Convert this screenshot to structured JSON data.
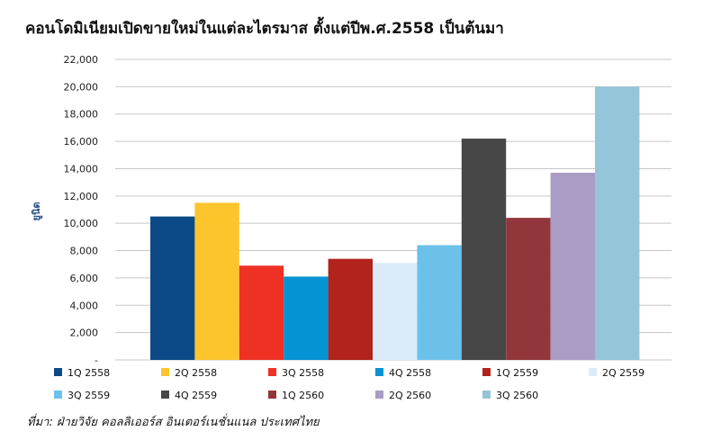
{
  "chart_data": {
    "type": "bar",
    "title": "คอนโดมิเนียมเปิดขายใหม่ในแต่ละไตรมาส ตั้งแต่ปีพ.ศ.2558 เป็นต้นมา",
    "ylabel": "ยูนิต",
    "xlabel": "",
    "ylim": [
      0,
      22000
    ],
    "yticks": [
      0,
      2000,
      4000,
      6000,
      8000,
      10000,
      12000,
      14000,
      16000,
      18000,
      20000,
      22000
    ],
    "ytick_labels": [
      "-",
      "2,000",
      "4,000",
      "6,000",
      "8,000",
      "10,000",
      "12,000",
      "14,000",
      "16,000",
      "18,000",
      "20,000",
      "22,000"
    ],
    "grid": true,
    "legend_position": "bottom",
    "series": [
      {
        "name": "1Q 2558",
        "value": 10500,
        "color": "#0b4a86"
      },
      {
        "name": "2Q 2558",
        "value": 11500,
        "color": "#fcc52c"
      },
      {
        "name": "3Q 2558",
        "value": 6900,
        "color": "#ef3125"
      },
      {
        "name": "4Q 2558",
        "value": 6100,
        "color": "#0593d3"
      },
      {
        "name": "1Q 2559",
        "value": 7400,
        "color": "#b1231c"
      },
      {
        "name": "2Q 2559",
        "value": 7100,
        "color": "#dbecf8"
      },
      {
        "name": "3Q 2559",
        "value": 8400,
        "color": "#6cc1ea"
      },
      {
        "name": "4Q 2559",
        "value": 16200,
        "color": "#474747"
      },
      {
        "name": "1Q 2560",
        "value": 10400,
        "color": "#91363a"
      },
      {
        "name": "2Q 2560",
        "value": 13700,
        "color": "#aa9cc4"
      },
      {
        "name": "3Q 2560",
        "value": 20000,
        "color": "#94c5d8"
      }
    ]
  },
  "source": "ที่มา: ฝ่ายวิจัย คอลลิเออร์ส อินเตอร์เนชั่นแนล ประเทศไทย"
}
